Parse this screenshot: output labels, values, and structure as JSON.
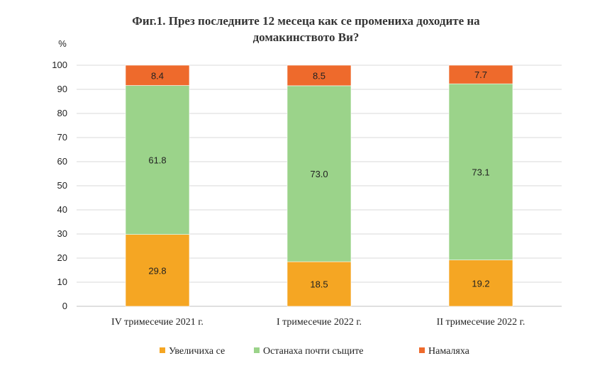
{
  "chart_data": {
    "type": "bar",
    "stacked": true,
    "title_line1": "Фиг.1. През последните 12 месеца как се промениха доходите на",
    "title_line2": "домакинството Ви?",
    "ylabel": "%",
    "ylim": [
      0,
      100
    ],
    "yticks": [
      0,
      10,
      20,
      30,
      40,
      50,
      60,
      70,
      80,
      90,
      100
    ],
    "grid": true,
    "legend_position": "bottom",
    "categories": [
      "IV тримесечие 2021  г.",
      "I тримесечие 2022  г.",
      "II тримесечие 2022  г."
    ],
    "series": [
      {
        "name": "Увеличиха  се",
        "color": "#F5A623",
        "values": [
          29.8,
          18.5,
          19.2
        ],
        "labels": [
          "29.8",
          "18.5",
          "19.2"
        ]
      },
      {
        "name": "Останаха  почти  същите",
        "color": "#9BD38A",
        "values": [
          61.8,
          73.0,
          73.1
        ],
        "labels": [
          "61.8",
          "73.0",
          "73.1"
        ]
      },
      {
        "name": "Намаляха",
        "color": "#EE6A2C",
        "values": [
          8.4,
          8.5,
          7.7
        ],
        "labels": [
          "8.4",
          "8.5",
          "7.7"
        ]
      }
    ]
  }
}
